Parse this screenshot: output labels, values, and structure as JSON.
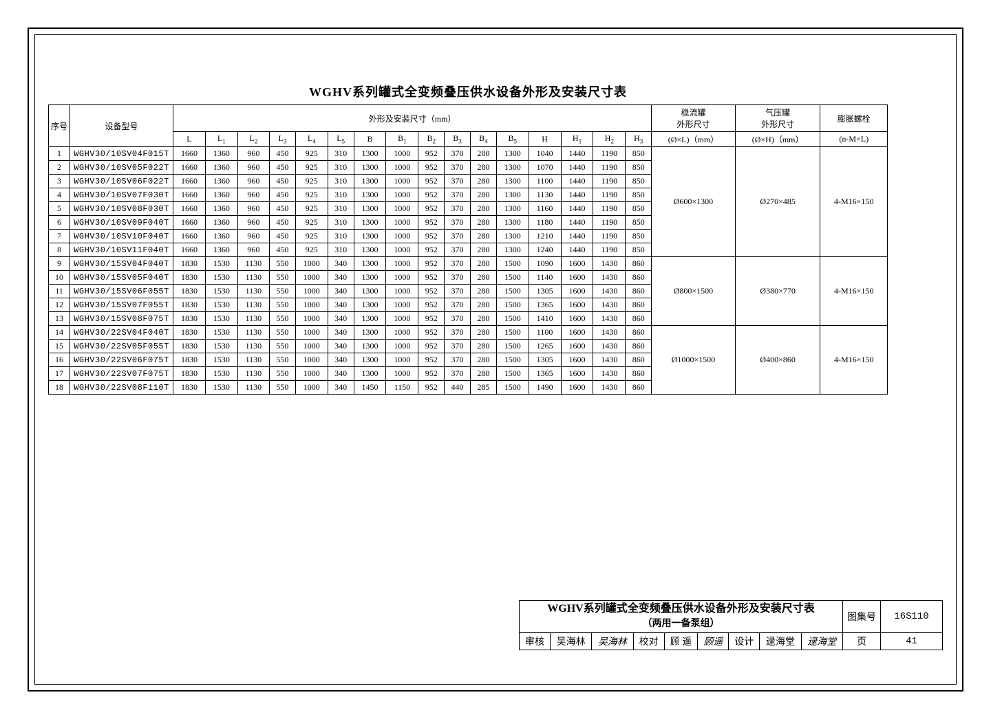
{
  "title": "WGHV系列罐式全变频叠压供水设备外形及安装尺寸表",
  "header": {
    "seq": "序号",
    "model": "设备型号",
    "dims_group": "外形及安装尺寸（mm）",
    "stable_tank": "稳流罐\n外形尺寸",
    "stable_tank_unit": "(Ø×L)（mm）",
    "pressure_tank": "气压罐\n外形尺寸",
    "pressure_tank_unit": "(Ø×H)（mm）",
    "bolt": "膨胀螺栓",
    "bolt_unit": "(n-M×L)",
    "cols": [
      "L",
      "L₁",
      "L₂",
      "L₃",
      "L₄",
      "L₅",
      "B",
      "B₁",
      "B₂",
      "B₃",
      "B₄",
      "B₅",
      "H",
      "H₁",
      "H₂",
      "H₃"
    ]
  },
  "groups": [
    {
      "stable_tank": "Ø600×1300",
      "pressure_tank": "Ø270×485",
      "bolt": "4-M16×150",
      "rows": [
        {
          "seq": 1,
          "model": "WGHV30/10SV04F015T",
          "v": [
            1660,
            1360,
            960,
            450,
            925,
            310,
            1300,
            1000,
            952,
            370,
            280,
            1300,
            1040,
            1440,
            1190,
            850
          ]
        },
        {
          "seq": 2,
          "model": "WGHV30/10SV05F022T",
          "v": [
            1660,
            1360,
            960,
            450,
            925,
            310,
            1300,
            1000,
            952,
            370,
            280,
            1300,
            1070,
            1440,
            1190,
            850
          ]
        },
        {
          "seq": 3,
          "model": "WGHV30/10SV06F022T",
          "v": [
            1660,
            1360,
            960,
            450,
            925,
            310,
            1300,
            1000,
            952,
            370,
            280,
            1300,
            1100,
            1440,
            1190,
            850
          ]
        },
        {
          "seq": 4,
          "model": "WGHV30/10SV07F030T",
          "v": [
            1660,
            1360,
            960,
            450,
            925,
            310,
            1300,
            1000,
            952,
            370,
            280,
            1300,
            1130,
            1440,
            1190,
            850
          ]
        },
        {
          "seq": 5,
          "model": "WGHV30/10SV08F030T",
          "v": [
            1660,
            1360,
            960,
            450,
            925,
            310,
            1300,
            1000,
            952,
            370,
            280,
            1300,
            1160,
            1440,
            1190,
            850
          ]
        },
        {
          "seq": 6,
          "model": "WGHV30/10SV09F040T",
          "v": [
            1660,
            1360,
            960,
            450,
            925,
            310,
            1300,
            1000,
            952,
            370,
            280,
            1300,
            1180,
            1440,
            1190,
            850
          ]
        },
        {
          "seq": 7,
          "model": "WGHV30/10SV10F040T",
          "v": [
            1660,
            1360,
            960,
            450,
            925,
            310,
            1300,
            1000,
            952,
            370,
            280,
            1300,
            1210,
            1440,
            1190,
            850
          ]
        },
        {
          "seq": 8,
          "model": "WGHV30/10SV11F040T",
          "v": [
            1660,
            1360,
            960,
            450,
            925,
            310,
            1300,
            1000,
            952,
            370,
            280,
            1300,
            1240,
            1440,
            1190,
            850
          ]
        }
      ]
    },
    {
      "stable_tank": "Ø800×1500",
      "pressure_tank": "Ø380×770",
      "bolt": "4-M16×150",
      "rows": [
        {
          "seq": 9,
          "model": "WGHV30/15SV04F040T",
          "v": [
            1830,
            1530,
            1130,
            550,
            1000,
            340,
            1300,
            1000,
            952,
            370,
            280,
            1500,
            1090,
            1600,
            1430,
            860
          ]
        },
        {
          "seq": 10,
          "model": "WGHV30/15SV05F040T",
          "v": [
            1830,
            1530,
            1130,
            550,
            1000,
            340,
            1300,
            1000,
            952,
            370,
            280,
            1500,
            1140,
            1600,
            1430,
            860
          ]
        },
        {
          "seq": 11,
          "model": "WGHV30/15SV06F055T",
          "v": [
            1830,
            1530,
            1130,
            550,
            1000,
            340,
            1300,
            1000,
            952,
            370,
            280,
            1500,
            1305,
            1600,
            1430,
            860
          ]
        },
        {
          "seq": 12,
          "model": "WGHV30/15SV07F055T",
          "v": [
            1830,
            1530,
            1130,
            550,
            1000,
            340,
            1300,
            1000,
            952,
            370,
            280,
            1500,
            1365,
            1600,
            1430,
            860
          ]
        },
        {
          "seq": 13,
          "model": "WGHV30/15SV08F075T",
          "v": [
            1830,
            1530,
            1130,
            550,
            1000,
            340,
            1300,
            1000,
            952,
            370,
            280,
            1500,
            1410,
            1600,
            1430,
            860
          ]
        }
      ]
    },
    {
      "stable_tank": "Ø1000×1500",
      "pressure_tank": "Ø400×860",
      "bolt": "4-M16×150",
      "rows": [
        {
          "seq": 14,
          "model": "WGHV30/22SV04F040T",
          "v": [
            1830,
            1530,
            1130,
            550,
            1000,
            340,
            1300,
            1000,
            952,
            370,
            280,
            1500,
            1100,
            1600,
            1430,
            860
          ]
        },
        {
          "seq": 15,
          "model": "WGHV30/22SV05F055T",
          "v": [
            1830,
            1530,
            1130,
            550,
            1000,
            340,
            1300,
            1000,
            952,
            370,
            280,
            1500,
            1265,
            1600,
            1430,
            860
          ]
        },
        {
          "seq": 16,
          "model": "WGHV30/22SV06F075T",
          "v": [
            1830,
            1530,
            1130,
            550,
            1000,
            340,
            1300,
            1000,
            952,
            370,
            280,
            1500,
            1305,
            1600,
            1430,
            860
          ]
        },
        {
          "seq": 17,
          "model": "WGHV30/22SV07F075T",
          "v": [
            1830,
            1530,
            1130,
            550,
            1000,
            340,
            1300,
            1000,
            952,
            370,
            280,
            1500,
            1365,
            1600,
            1430,
            860
          ]
        },
        {
          "seq": 18,
          "model": "WGHV30/22SV08F110T",
          "v": [
            1830,
            1530,
            1130,
            550,
            1000,
            340,
            1450,
            1150,
            952,
            440,
            285,
            1500,
            1490,
            1600,
            1430,
            860
          ]
        }
      ]
    }
  ],
  "titleblock": {
    "title_line1": "WGHV系列罐式全变频叠压供水设备外形及安装尺寸表",
    "title_line2": "（两用一备泵组）",
    "atlas_label": "图集号",
    "atlas_value": "16S110",
    "review_label": "审核",
    "review_name": "吴海林",
    "review_sig": "吴海林",
    "check_label": "校对",
    "check_name": "顾 遥",
    "check_sig": "顾遥",
    "design_label": "设计",
    "design_name": "逯海堂",
    "design_sig": "逯海堂",
    "page_label": "页",
    "page_value": "41"
  }
}
